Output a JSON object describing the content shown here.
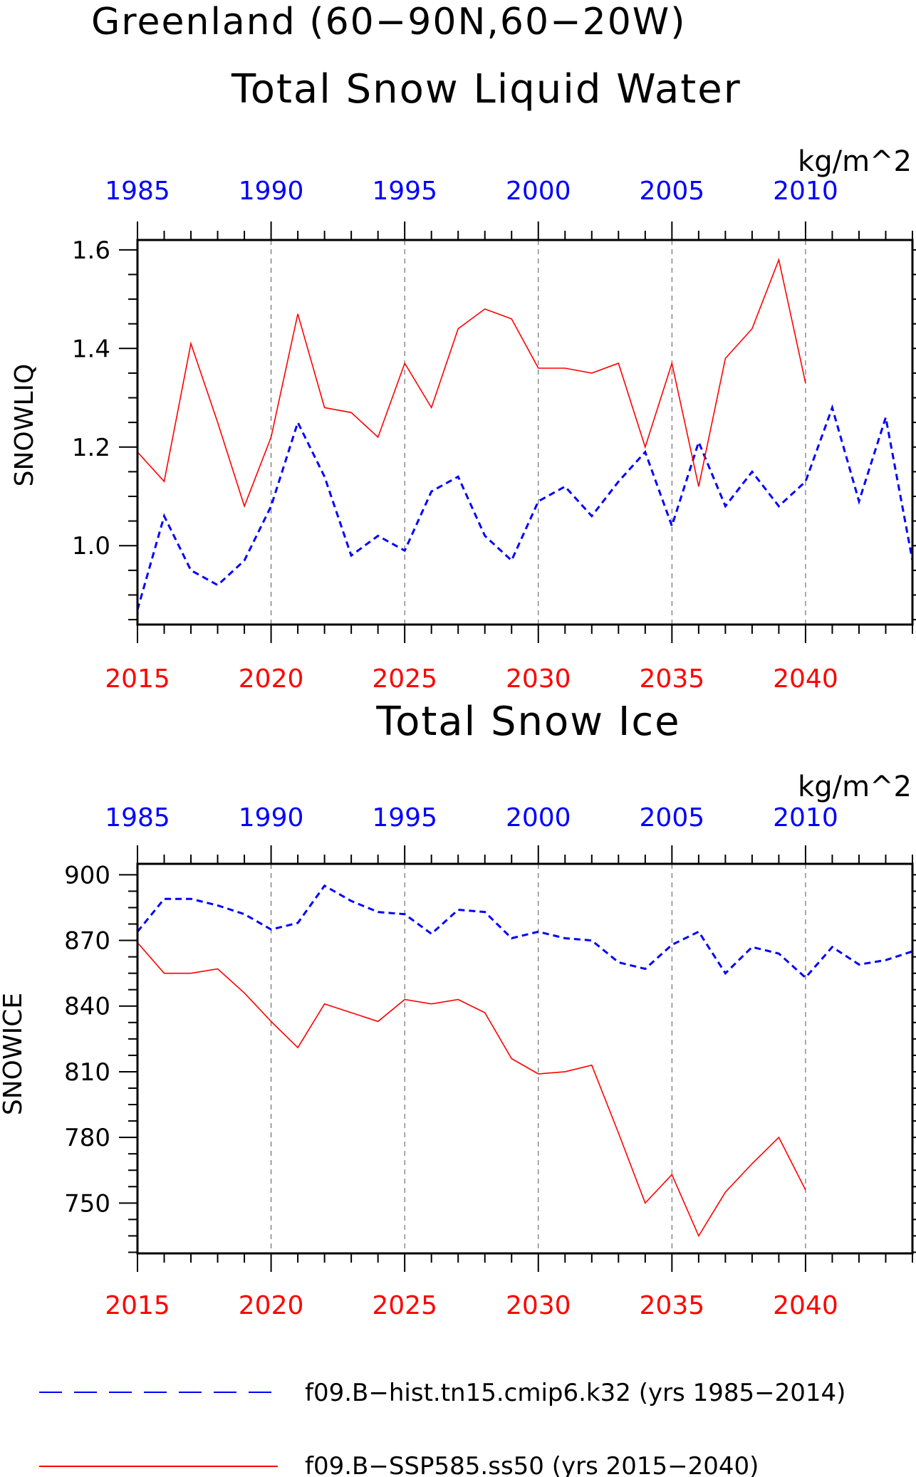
{
  "header": {
    "title_line1": "Greenland (60−90N,60−20W)"
  },
  "colors": {
    "hist": "#0000ff",
    "future": "#ff0000",
    "axis": "#000000",
    "grid": "#555555"
  },
  "legend": {
    "hist_label": "f09.B−hist.tn15.cmip6.k32 (yrs 1985−2014)",
    "future_label": "f09.B−SSP585.ss50 (yrs 2015−2040)"
  },
  "chart_data": [
    {
      "type": "line",
      "title": "Total Snow Liquid Water",
      "units": "kg/m^2",
      "ylabel": "SNOWLIQ",
      "ylim": [
        0.84,
        1.62
      ],
      "yticks": [
        "1.0",
        "1.2",
        "1.4",
        "1.6"
      ],
      "ytick_values": [
        1.0,
        1.2,
        1.4,
        1.6
      ],
      "top_axis": {
        "ticks": [
          "1985",
          "1990",
          "1995",
          "2000",
          "2005",
          "2010"
        ],
        "color": "hist"
      },
      "bottom_axis": {
        "ticks": [
          "2015",
          "2020",
          "2025",
          "2030",
          "2035",
          "2040"
        ],
        "color": "future"
      },
      "xlim": [
        2015,
        2044
      ],
      "grid": "vertical dashed at major x ticks",
      "series": [
        {
          "name": "f09.B−hist.tn15.cmip6.k32 (yrs 1985−2014)",
          "style": "dashed",
          "color": "hist",
          "x": [
            2015,
            2016,
            2017,
            2018,
            2019,
            2020,
            2021,
            2022,
            2023,
            2024,
            2025,
            2026,
            2027,
            2028,
            2029,
            2030,
            2031,
            2032,
            2033,
            2034,
            2035,
            2036,
            2037,
            2038,
            2039,
            2040,
            2041,
            2042,
            2043,
            2044
          ],
          "values": [
            0.87,
            1.06,
            0.95,
            0.92,
            0.97,
            1.08,
            1.25,
            1.14,
            0.98,
            1.02,
            0.99,
            1.11,
            1.14,
            1.02,
            0.97,
            1.09,
            1.12,
            1.06,
            1.13,
            1.19,
            1.04,
            1.21,
            1.08,
            1.15,
            1.08,
            1.13,
            1.28,
            1.09,
            1.26,
            0.97
          ]
        },
        {
          "name": "f09.B−SSP585.ss50 (yrs 2015−2040)",
          "style": "solid",
          "color": "future",
          "x": [
            2015,
            2016,
            2017,
            2018,
            2019,
            2020,
            2021,
            2022,
            2023,
            2024,
            2025,
            2026,
            2027,
            2028,
            2029,
            2030,
            2031,
            2032,
            2033,
            2034,
            2035,
            2036,
            2037,
            2038,
            2039,
            2040
          ],
          "values": [
            1.19,
            1.13,
            1.41,
            1.25,
            1.08,
            1.22,
            1.47,
            1.28,
            1.27,
            1.22,
            1.37,
            1.28,
            1.44,
            1.48,
            1.46,
            1.36,
            1.36,
            1.35,
            1.37,
            1.2,
            1.37,
            1.12,
            1.38,
            1.44,
            1.58,
            1.33
          ]
        }
      ]
    },
    {
      "type": "line",
      "title": "Total Snow Ice",
      "units": "kg/m^2",
      "ylabel": "SNOWICE",
      "ylim": [
        727,
        905
      ],
      "yticks": [
        "750",
        "780",
        "810",
        "840",
        "870",
        "900"
      ],
      "ytick_values": [
        750,
        780,
        810,
        840,
        870,
        900
      ],
      "top_axis": {
        "ticks": [
          "1985",
          "1990",
          "1995",
          "2000",
          "2005",
          "2010"
        ],
        "color": "hist"
      },
      "bottom_axis": {
        "ticks": [
          "2015",
          "2020",
          "2025",
          "2030",
          "2035",
          "2040"
        ],
        "color": "future"
      },
      "xlim": [
        2015,
        2044
      ],
      "grid": "vertical dashed at major x ticks",
      "series": [
        {
          "name": "f09.B−hist.tn15.cmip6.k32 (yrs 1985−2014)",
          "style": "dashed",
          "color": "hist",
          "x": [
            2015,
            2016,
            2017,
            2018,
            2019,
            2020,
            2021,
            2022,
            2023,
            2024,
            2025,
            2026,
            2027,
            2028,
            2029,
            2030,
            2031,
            2032,
            2033,
            2034,
            2035,
            2036,
            2037,
            2038,
            2039,
            2040,
            2041,
            2042,
            2043,
            2044
          ],
          "values": [
            874,
            889,
            889,
            886,
            882,
            875,
            878,
            895,
            888,
            883,
            882,
            873,
            884,
            883,
            871,
            874,
            871,
            870,
            860,
            857,
            868,
            874,
            855,
            867,
            864,
            853,
            867,
            859,
            861,
            865
          ]
        },
        {
          "name": "f09.B−SSP585.ss50 (yrs 2015−2040)",
          "style": "solid",
          "color": "future",
          "x": [
            2015,
            2016,
            2017,
            2018,
            2019,
            2020,
            2021,
            2022,
            2023,
            2024,
            2025,
            2026,
            2027,
            2028,
            2029,
            2030,
            2031,
            2032,
            2033,
            2034,
            2035,
            2036,
            2037,
            2038,
            2039,
            2040
          ],
          "values": [
            869,
            855,
            855,
            857,
            846,
            833,
            821,
            841,
            837,
            833,
            843,
            841,
            843,
            837,
            816,
            809,
            810,
            813,
            782,
            750,
            763,
            735,
            755,
            768,
            780,
            756
          ]
        }
      ]
    }
  ]
}
